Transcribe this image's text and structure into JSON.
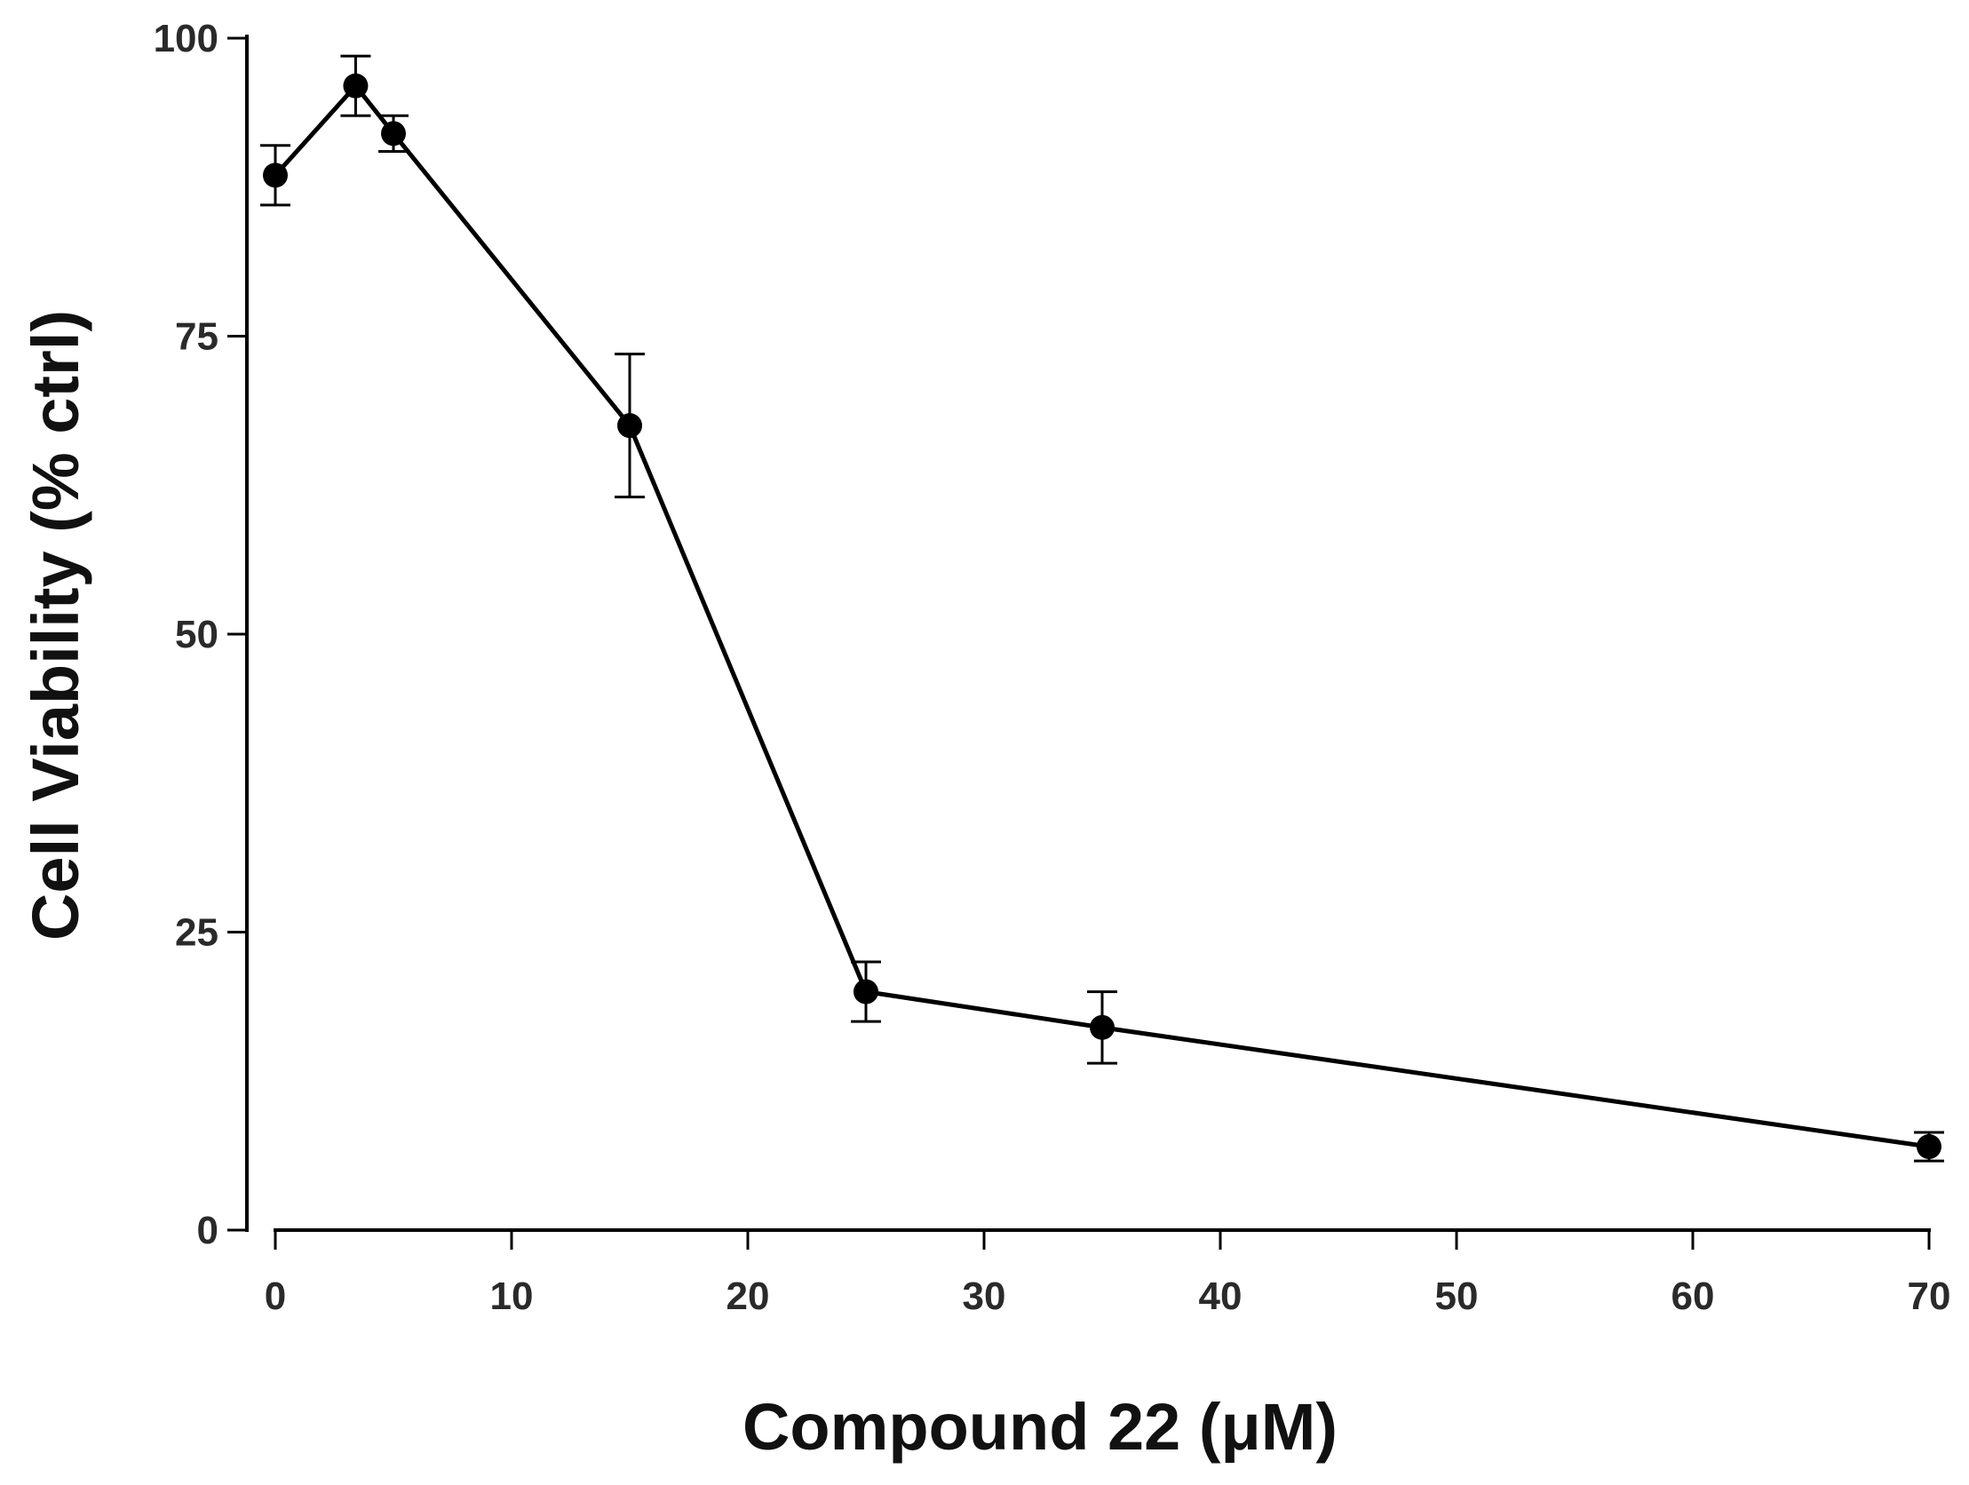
{
  "chart_data": {
    "type": "line",
    "title": "",
    "xlabel": "Compound 22 (μM)",
    "ylabel": "Cell Viability (% ctrl)",
    "xlim": [
      0,
      70
    ],
    "ylim": [
      0,
      100
    ],
    "x_ticks": [
      0,
      10,
      20,
      30,
      40,
      50,
      60,
      70
    ],
    "y_ticks": [
      0,
      25,
      50,
      75,
      100
    ],
    "x_tick_labels": [
      "0",
      "10",
      "20",
      "30",
      "40",
      "50",
      "60",
      "70"
    ],
    "y_tick_labels": [
      "0",
      "25",
      "50",
      "75",
      "100"
    ],
    "grid": false,
    "legend": "none",
    "series": [
      {
        "color": "#000000",
        "marker": "filled-circle",
        "x": [
          0,
          3.4,
          5,
          15,
          25,
          35,
          70
        ],
        "y": [
          88.5,
          96,
          92,
          67.5,
          20,
          17,
          7
        ],
        "error": [
          2.5,
          2.5,
          1.5,
          6,
          2.5,
          3,
          1.2
        ]
      }
    ]
  }
}
